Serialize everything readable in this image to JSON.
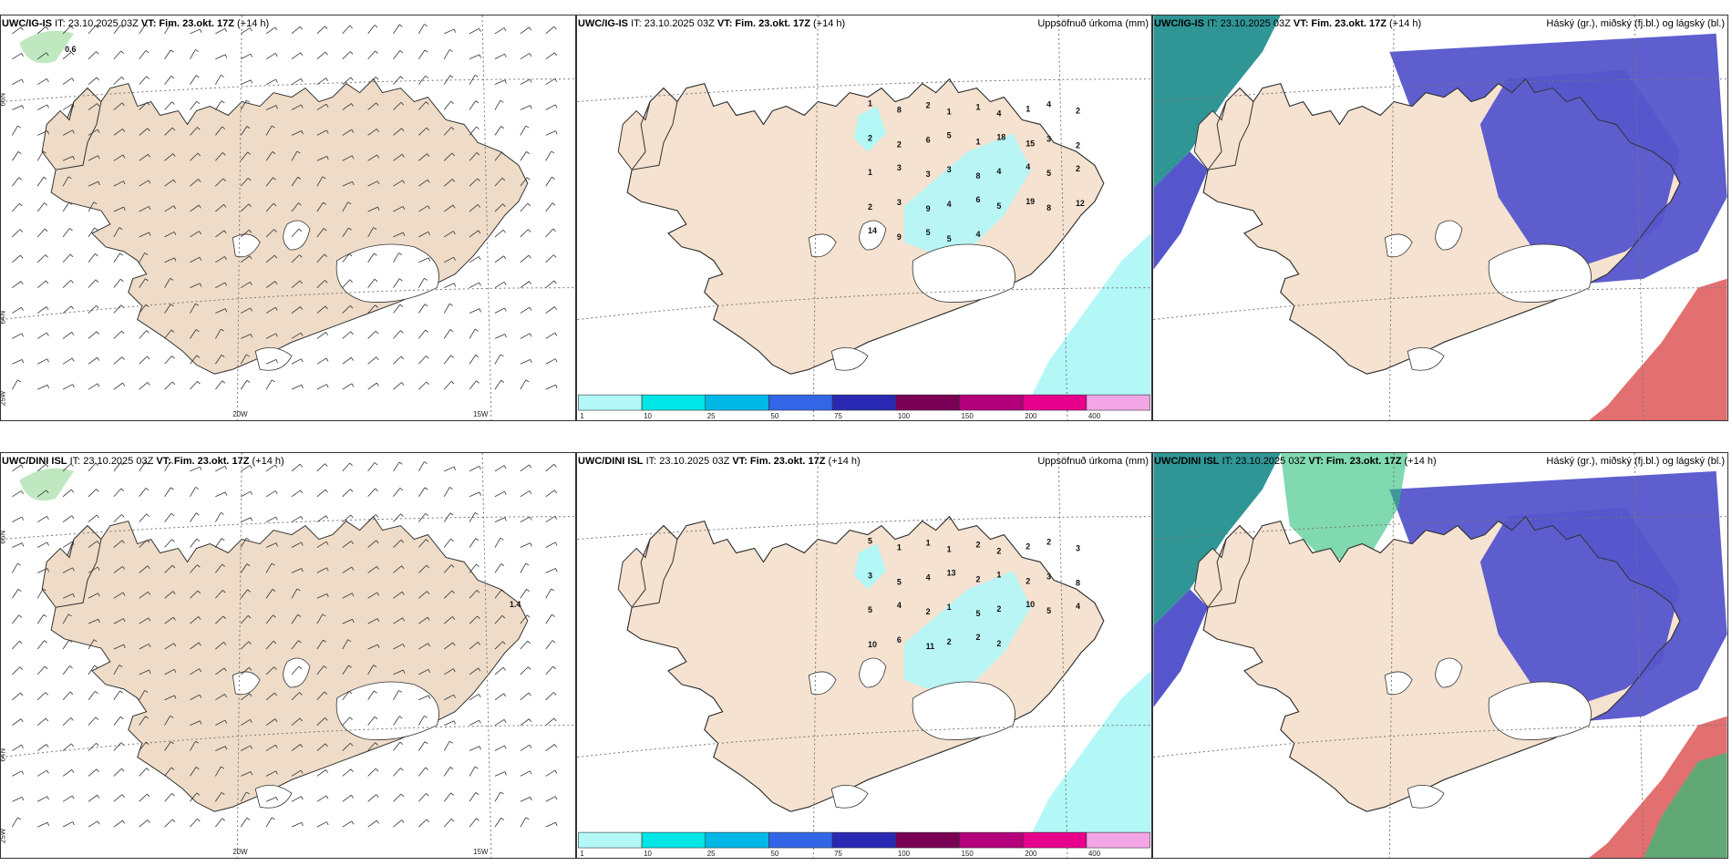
{
  "panels": [
    {
      "id": "p1",
      "model": "UWC/IG-IS",
      "it": "IT: 23.10.2025 03Z",
      "vt": "VT: Fim. 23.okt. 17Z",
      "lead": "(+14 h)",
      "right": "",
      "kind": "wind",
      "max_label": "0.6"
    },
    {
      "id": "p2",
      "model": "UWC/IG-IS",
      "it": "IT: 23.10.2025 03Z",
      "vt": "VT: Fim. 23.okt. 17Z",
      "lead": "(+14 h)",
      "right": "Uppsöfnuð úrkoma (mm)",
      "kind": "precip"
    },
    {
      "id": "p3",
      "model": "UWC/IG-IS",
      "it": "IT: 23.10.2025 03Z",
      "vt": "VT: Fim. 23.okt. 17Z",
      "lead": "(+14 h)",
      "right": "Háský (gr.), miðský (fj.bl.) og lágský (bl.)",
      "kind": "cloud"
    },
    {
      "id": "p4",
      "model": "UWC/DINI ISL",
      "it": "IT: 23.10.2025 03Z",
      "vt": "VT: Fim. 23.okt. 17Z",
      "lead": "(+14 h)",
      "right": "",
      "kind": "wind",
      "max_label": "1.4"
    },
    {
      "id": "p5",
      "model": "UWC/DINI ISL",
      "it": "IT: 23.10.2025 03Z",
      "vt": "VT: Fim. 23.okt. 17Z",
      "lead": "(+14 h)",
      "right": "Uppsöfnuð úrkoma (mm)",
      "kind": "precip"
    },
    {
      "id": "p6",
      "model": "UWC/DINI ISL",
      "it": "IT: 23.10.2025 03Z",
      "vt": "VT: Fim. 23.okt. 17Z",
      "lead": "(+14 h)",
      "right": "Háský (gr.), miðský (fj.bl.) og lágský (bl.)",
      "kind": "cloud"
    }
  ],
  "axis_labels": {
    "lat66": "66N",
    "lat64": "64N",
    "lon25": "25W",
    "lon20": "20W",
    "lon15": "15W"
  },
  "colorbar": {
    "colors": [
      "#b3f7f7",
      "#00e5e5",
      "#00b7e6",
      "#3266e6",
      "#2929b3",
      "#7a0055",
      "#b3007a",
      "#e6008c",
      "#f2a6e6"
    ],
    "labels": [
      "1",
      "10",
      "25",
      "50",
      "75",
      "100",
      "150",
      "200",
      "400"
    ]
  },
  "precip_values_top": [
    "1",
    "8",
    "2",
    "1",
    "1",
    "4",
    "1",
    "4",
    "2",
    "2",
    "2",
    "6",
    "5",
    "1",
    "18",
    "15",
    "3",
    "2",
    "1",
    "3",
    "3",
    "3",
    "8",
    "4",
    "4",
    "5",
    "2",
    "2",
    "3",
    "9",
    "4",
    "6",
    "5",
    "19",
    "8",
    "12",
    "14",
    "9",
    "5",
    "5",
    "4"
  ],
  "precip_values_bottom": [
    "5",
    "1",
    "1",
    "1",
    "2",
    "2",
    "2",
    "2",
    "3",
    "3",
    "5",
    "4",
    "13",
    "2",
    "1",
    "2",
    "3",
    "8",
    "5",
    "4",
    "2",
    "1",
    "5",
    "2",
    "10",
    "5",
    "4",
    "10",
    "6",
    "11",
    "2",
    "2",
    "2"
  ],
  "colors": {
    "land": "#f5e2d0",
    "land_wind": "#eedcc8",
    "cloud_high": "#5555cc",
    "cloud_low": "#1a8a8a",
    "green": "#2cc07a",
    "red": "#d84040"
  }
}
